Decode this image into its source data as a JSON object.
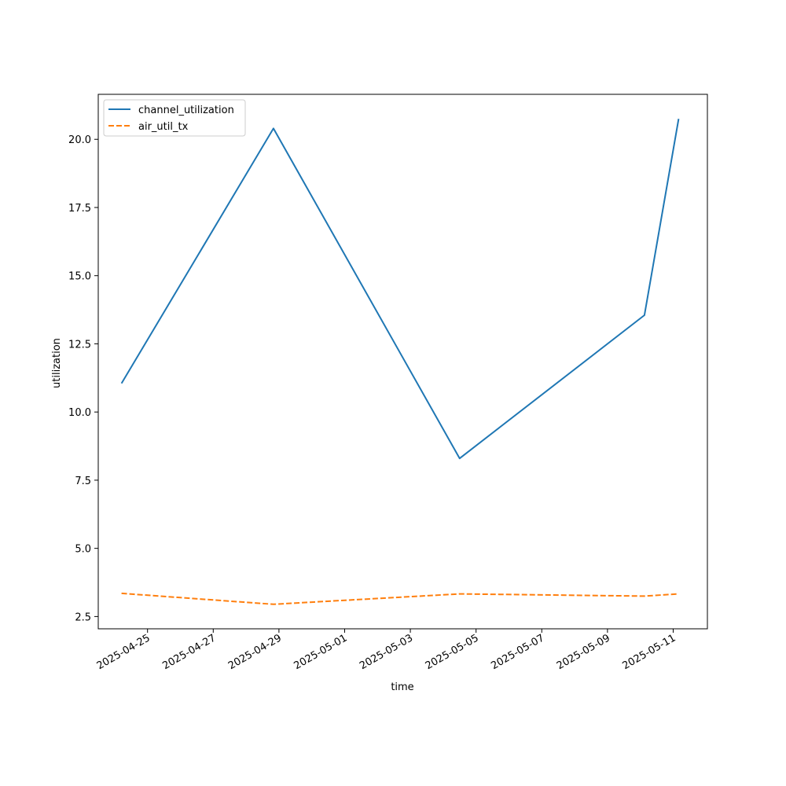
{
  "chart_data": {
    "type": "line",
    "title": "",
    "xlabel": "time",
    "ylabel": "utilization",
    "x_tick_labels": [
      "2025-04-25",
      "2025-04-27",
      "2025-04-29",
      "2025-05-01",
      "2025-05-03",
      "2025-05-05",
      "2025-05-07",
      "2025-05-09",
      "2025-05-11"
    ],
    "y_tick_labels": [
      "2.5",
      "5.0",
      "7.5",
      "10.0",
      "12.5",
      "15.0",
      "17.5",
      "20.0"
    ],
    "xlim": [
      "2024-04-23T12:00",
      "2025-05-12T01:00"
    ],
    "ylim": [
      2.05,
      21.65
    ],
    "legend_location": "upper-left",
    "grid": false,
    "series": [
      {
        "name": "channel_utilization",
        "color": "#1f77b4",
        "style": "solid",
        "points": [
          {
            "x": "2025-04-24T05:00",
            "y": 11.05
          },
          {
            "x": "2025-04-28T20:00",
            "y": 20.4
          },
          {
            "x": "2025-05-04T12:00",
            "y": 8.3
          },
          {
            "x": "2025-05-10T03:00",
            "y": 13.55
          },
          {
            "x": "2025-05-11T04:00",
            "y": 20.75
          }
        ]
      },
      {
        "name": "air_util_tx",
        "color": "#ff7f0e",
        "style": "dashed",
        "points": [
          {
            "x": "2025-04-24T05:00",
            "y": 3.35
          },
          {
            "x": "2025-04-28T20:00",
            "y": 2.95
          },
          {
            "x": "2025-05-04T12:00",
            "y": 3.33
          },
          {
            "x": "2025-05-10T03:00",
            "y": 3.25
          },
          {
            "x": "2025-05-11T04:00",
            "y": 3.33
          }
        ]
      }
    ]
  }
}
